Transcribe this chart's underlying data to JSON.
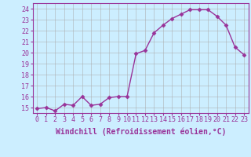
{
  "x": [
    0,
    1,
    2,
    3,
    4,
    5,
    6,
    7,
    8,
    9,
    10,
    11,
    12,
    13,
    14,
    15,
    16,
    17,
    18,
    19,
    20,
    21,
    22,
    23
  ],
  "y": [
    14.9,
    15.0,
    14.7,
    15.3,
    15.2,
    16.0,
    15.2,
    15.3,
    15.9,
    16.0,
    16.0,
    19.9,
    20.2,
    21.8,
    22.5,
    23.1,
    23.5,
    23.9,
    23.9,
    23.9,
    23.3,
    22.5,
    20.5,
    19.8
  ],
  "line_color": "#993399",
  "marker": "D",
  "markersize": 2.5,
  "linewidth": 1.0,
  "xlabel": "Windchill (Refroidissement éolien,°C)",
  "yticks": [
    15,
    16,
    17,
    18,
    19,
    20,
    21,
    22,
    23,
    24
  ],
  "xtick_labels": [
    "0",
    "1",
    "2",
    "3",
    "4",
    "5",
    "6",
    "7",
    "8",
    "9",
    "10",
    "11",
    "12",
    "13",
    "14",
    "15",
    "16",
    "17",
    "18",
    "19",
    "20",
    "21",
    "22",
    "23"
  ],
  "ylim": [
    14.5,
    24.5
  ],
  "xlim": [
    -0.5,
    23.5
  ],
  "bg_color": "#cceeff",
  "grid_color": "#aaaaaa",
  "line_purple": "#993399",
  "label_color": "#993399",
  "xlabel_fontsize": 7,
  "tick_fontsize": 6,
  "ytick_fontsize": 6
}
